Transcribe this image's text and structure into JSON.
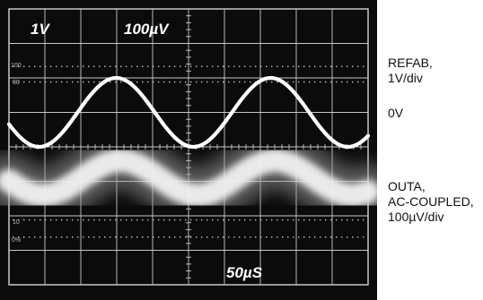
{
  "screen_labels": {
    "ch1_scale": "1V",
    "ch2_scale": "100µV",
    "marker_100": "100",
    "marker_90": "90",
    "marker_10": "10",
    "marker_0": "0%",
    "timebase": "50µS"
  },
  "side_labels": {
    "ch1": "REFAB,\n1V/div",
    "zero": "0V",
    "ch2": "OUTA,\nAC-COUPLED,\n100µV/div"
  },
  "colors": {
    "screen": "#0b0b0b",
    "grid": "#c8c8c8",
    "trace": "#ffffff",
    "text": "#111111"
  },
  "chart_data": {
    "type": "line",
    "grid": true,
    "x_divisions": 10,
    "y_divisions": 8,
    "timebase_per_div": "50µS",
    "series": [
      {
        "name": "REFAB",
        "scale_per_div": "1V",
        "period_div": 4.3,
        "amplitude_div": 1.0,
        "offset_div": 1.0,
        "phase_deg": 200,
        "style": "sharp"
      },
      {
        "name": "OUTA",
        "coupling": "AC",
        "scale_per_div": "100µV",
        "period_div": 4.3,
        "amplitude_div": 0.5,
        "offset_div": -0.9,
        "phase_deg": 190,
        "style": "noisy"
      }
    ]
  }
}
